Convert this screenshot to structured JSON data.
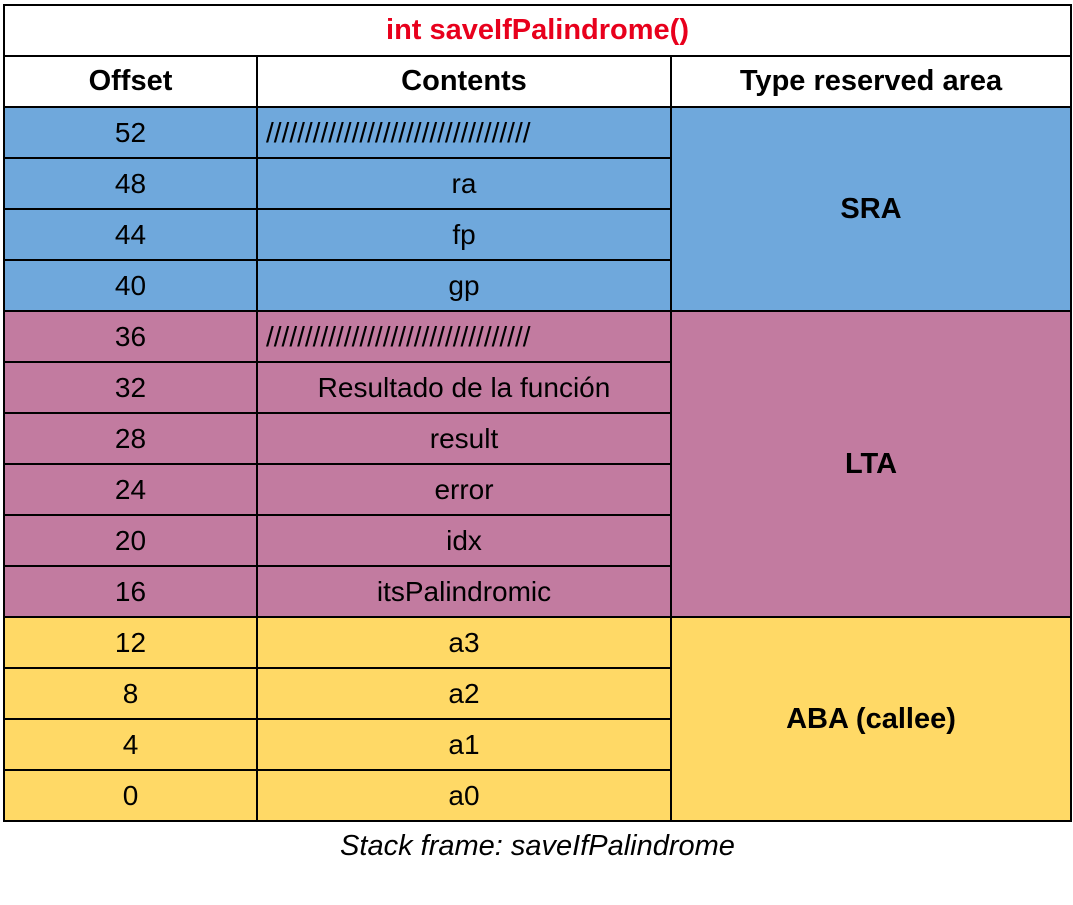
{
  "title": "int saveIfPalindrome()",
  "headers": {
    "offset": "Offset",
    "contents": "Contents",
    "type": "Type reserved area"
  },
  "colors": {
    "SRA": "#6fa8dc",
    "LTA": "#c27ba0",
    "ABA": "#ffd966",
    "title": "#e8001c"
  },
  "groups": [
    {
      "area": "SRA",
      "rows": [
        {
          "offset": "52",
          "contents": "//////////////////////////////////"
        },
        {
          "offset": "48",
          "contents": "ra"
        },
        {
          "offset": "44",
          "contents": "fp"
        },
        {
          "offset": "40",
          "contents": "gp"
        }
      ]
    },
    {
      "area": "LTA",
      "rows": [
        {
          "offset": "36",
          "contents": "//////////////////////////////////"
        },
        {
          "offset": "32",
          "contents": "Resultado de la función"
        },
        {
          "offset": "28",
          "contents": "result"
        },
        {
          "offset": "24",
          "contents": "error"
        },
        {
          "offset": "20",
          "contents": "idx"
        },
        {
          "offset": "16",
          "contents": "itsPalindromic"
        }
      ]
    },
    {
      "area": "ABA (callee)",
      "rows": [
        {
          "offset": "12",
          "contents": "a3"
        },
        {
          "offset": "8",
          "contents": "a2"
        },
        {
          "offset": "4",
          "contents": "a1"
        },
        {
          "offset": "0",
          "contents": "a0"
        }
      ]
    }
  ],
  "caption": "Stack frame: saveIfPalindrome"
}
